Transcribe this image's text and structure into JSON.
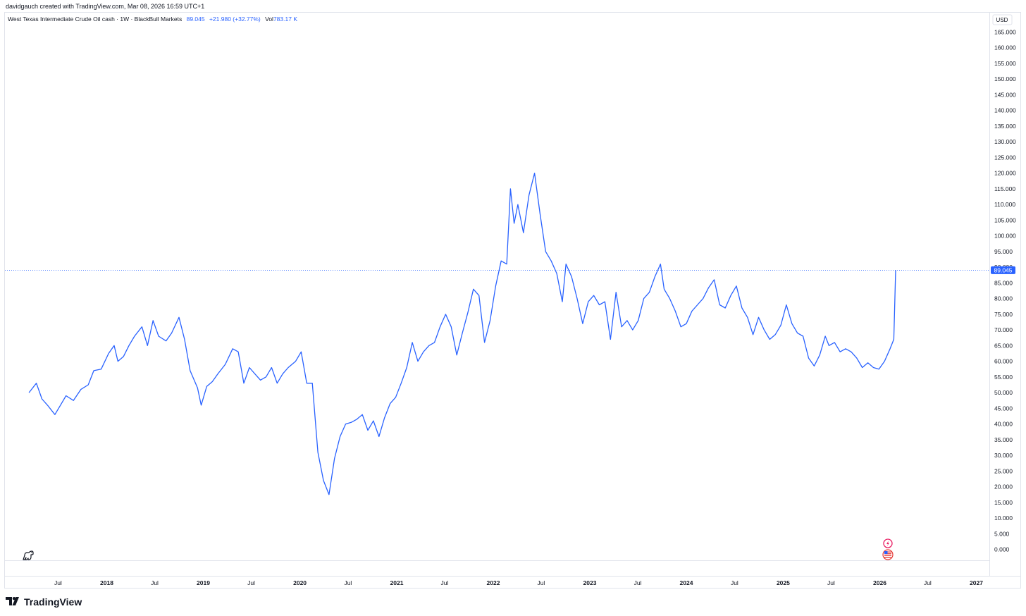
{
  "credit": "davidgauch created with TradingView.com, Mar 08, 2026 16:59 UTC+1",
  "legend": {
    "symbol": "West Texas Intermediate Crude Oil cash · 1W · BlackBull Markets",
    "price": "89.045",
    "change": "+21.980 (+32.77%)",
    "vol_label": "Vol",
    "vol_value": "783.17 K"
  },
  "currency": "USD",
  "last_price_label": "89.045",
  "brand": "TradingView",
  "colors": {
    "line": "#2962ff",
    "axis_text": "#131722",
    "border": "#e0e3eb",
    "price_badge": "#2962ff"
  },
  "icons": [
    "dino-icon",
    "events-flash-icon",
    "us-flag-icon",
    "tradingview-logo-icon"
  ],
  "chart_data": {
    "type": "line",
    "ylim": [
      0,
      165
    ],
    "y_ticks": [
      "165.000",
      "160.000",
      "155.000",
      "150.000",
      "145.000",
      "140.000",
      "135.000",
      "130.000",
      "125.000",
      "120.000",
      "115.000",
      "110.000",
      "105.000",
      "100.000",
      "95.000",
      "90.000",
      "85.000",
      "80.000",
      "75.000",
      "70.000",
      "65.000",
      "60.000",
      "55.000",
      "50.000",
      "45.000",
      "40.000",
      "35.000",
      "30.000",
      "25.000",
      "20.000",
      "15.000",
      "10.000",
      "5.000",
      "0.000"
    ],
    "x_ticks": [
      {
        "label": "Jul",
        "date": "2017-07-01",
        "bold": false
      },
      {
        "label": "2018",
        "date": "2018-01-01",
        "bold": true
      },
      {
        "label": "Jul",
        "date": "2018-07-01",
        "bold": false
      },
      {
        "label": "2019",
        "date": "2019-01-01",
        "bold": true
      },
      {
        "label": "Jul",
        "date": "2019-07-01",
        "bold": false
      },
      {
        "label": "2020",
        "date": "2020-01-01",
        "bold": true
      },
      {
        "label": "Jul",
        "date": "2020-07-01",
        "bold": false
      },
      {
        "label": "2021",
        "date": "2021-01-01",
        "bold": true
      },
      {
        "label": "Jul",
        "date": "2021-07-01",
        "bold": false
      },
      {
        "label": "2022",
        "date": "2022-01-01",
        "bold": true
      },
      {
        "label": "Jul",
        "date": "2022-07-01",
        "bold": false
      },
      {
        "label": "2023",
        "date": "2023-01-01",
        "bold": true
      },
      {
        "label": "Jul",
        "date": "2023-07-01",
        "bold": false
      },
      {
        "label": "2024",
        "date": "2024-01-01",
        "bold": true
      },
      {
        "label": "Jul",
        "date": "2024-07-01",
        "bold": false
      },
      {
        "label": "2025",
        "date": "2025-01-01",
        "bold": true
      },
      {
        "label": "Jul",
        "date": "2025-07-01",
        "bold": false
      },
      {
        "label": "2026",
        "date": "2026-01-01",
        "bold": true
      },
      {
        "label": "Jul",
        "date": "2026-07-01",
        "bold": false
      },
      {
        "label": "2027",
        "date": "2027-01-01",
        "bold": true
      }
    ],
    "last_value": 89.045,
    "series": [
      {
        "points": [
          [
            "2017-03-13",
            50.0
          ],
          [
            "2017-04-10",
            53.0
          ],
          [
            "2017-05-01",
            48.0
          ],
          [
            "2017-05-22",
            46.0
          ],
          [
            "2017-06-19",
            43.0
          ],
          [
            "2017-07-10",
            46.0
          ],
          [
            "2017-07-31",
            49.0
          ],
          [
            "2017-08-28",
            47.5
          ],
          [
            "2017-09-25",
            51.0
          ],
          [
            "2017-10-23",
            52.5
          ],
          [
            "2017-11-13",
            57.0
          ],
          [
            "2017-12-11",
            57.5
          ],
          [
            "2018-01-08",
            62.5
          ],
          [
            "2018-01-29",
            65.0
          ],
          [
            "2018-02-12",
            60.0
          ],
          [
            "2018-03-05",
            61.5
          ],
          [
            "2018-03-26",
            65.0
          ],
          [
            "2018-04-16",
            68.0
          ],
          [
            "2018-05-14",
            71.0
          ],
          [
            "2018-06-04",
            65.0
          ],
          [
            "2018-06-25",
            73.0
          ],
          [
            "2018-07-16",
            68.0
          ],
          [
            "2018-08-13",
            66.5
          ],
          [
            "2018-09-03",
            69.0
          ],
          [
            "2018-10-01",
            74.0
          ],
          [
            "2018-10-22",
            67.0
          ],
          [
            "2018-11-12",
            57.0
          ],
          [
            "2018-12-10",
            51.5
          ],
          [
            "2018-12-24",
            46.0
          ],
          [
            "2019-01-14",
            52.0
          ],
          [
            "2019-02-04",
            53.5
          ],
          [
            "2019-02-25",
            56.0
          ],
          [
            "2019-03-25",
            59.0
          ],
          [
            "2019-04-22",
            64.0
          ],
          [
            "2019-05-13",
            63.0
          ],
          [
            "2019-06-03",
            53.0
          ],
          [
            "2019-06-24",
            58.0
          ],
          [
            "2019-07-15",
            56.0
          ],
          [
            "2019-08-05",
            54.0
          ],
          [
            "2019-08-26",
            55.0
          ],
          [
            "2019-09-16",
            58.0
          ],
          [
            "2019-10-07",
            53.0
          ],
          [
            "2019-10-28",
            56.0
          ],
          [
            "2019-11-18",
            58.0
          ],
          [
            "2019-12-16",
            60.0
          ],
          [
            "2020-01-06",
            63.0
          ],
          [
            "2020-01-27",
            53.0
          ],
          [
            "2020-02-17",
            53.0
          ],
          [
            "2020-03-09",
            31.0
          ],
          [
            "2020-03-30",
            22.0
          ],
          [
            "2020-04-20",
            17.5
          ],
          [
            "2020-05-11",
            29.0
          ],
          [
            "2020-06-01",
            36.0
          ],
          [
            "2020-06-22",
            40.0
          ],
          [
            "2020-07-13",
            40.5
          ],
          [
            "2020-08-03",
            41.5
          ],
          [
            "2020-08-24",
            43.0
          ],
          [
            "2020-09-14",
            38.0
          ],
          [
            "2020-10-05",
            41.0
          ],
          [
            "2020-10-26",
            36.0
          ],
          [
            "2020-11-16",
            42.0
          ],
          [
            "2020-12-07",
            46.5
          ],
          [
            "2020-12-28",
            48.5
          ],
          [
            "2021-01-18",
            53.0
          ],
          [
            "2021-02-08",
            58.0
          ],
          [
            "2021-03-01",
            66.0
          ],
          [
            "2021-03-22",
            60.0
          ],
          [
            "2021-04-12",
            63.0
          ],
          [
            "2021-05-03",
            65.0
          ],
          [
            "2021-05-24",
            66.0
          ],
          [
            "2021-06-14",
            71.0
          ],
          [
            "2021-07-05",
            75.0
          ],
          [
            "2021-07-26",
            71.0
          ],
          [
            "2021-08-16",
            62.0
          ],
          [
            "2021-09-06",
            69.0
          ],
          [
            "2021-09-27",
            75.5
          ],
          [
            "2021-10-18",
            83.0
          ],
          [
            "2021-11-08",
            81.0
          ],
          [
            "2021-11-29",
            66.0
          ],
          [
            "2021-12-20",
            73.0
          ],
          [
            "2022-01-10",
            84.0
          ],
          [
            "2022-01-31",
            92.0
          ],
          [
            "2022-02-21",
            91.0
          ],
          [
            "2022-03-07",
            115.0
          ],
          [
            "2022-03-21",
            104.0
          ],
          [
            "2022-04-04",
            110.0
          ],
          [
            "2022-04-25",
            101.0
          ],
          [
            "2022-05-16",
            113.0
          ],
          [
            "2022-06-06",
            120.0
          ],
          [
            "2022-06-27",
            107.0
          ],
          [
            "2022-07-18",
            95.0
          ],
          [
            "2022-08-08",
            92.0
          ],
          [
            "2022-08-29",
            88.0
          ],
          [
            "2022-09-19",
            79.0
          ],
          [
            "2022-10-03",
            91.0
          ],
          [
            "2022-10-24",
            87.0
          ],
          [
            "2022-11-14",
            80.0
          ],
          [
            "2022-12-05",
            72.0
          ],
          [
            "2022-12-26",
            79.0
          ],
          [
            "2023-01-16",
            81.0
          ],
          [
            "2023-02-06",
            78.0
          ],
          [
            "2023-02-27",
            79.0
          ],
          [
            "2023-03-20",
            67.0
          ],
          [
            "2023-04-10",
            82.0
          ],
          [
            "2023-05-01",
            71.0
          ],
          [
            "2023-05-22",
            73.0
          ],
          [
            "2023-06-12",
            70.0
          ],
          [
            "2023-07-03",
            73.0
          ],
          [
            "2023-07-24",
            80.0
          ],
          [
            "2023-08-14",
            82.0
          ],
          [
            "2023-09-04",
            87.0
          ],
          [
            "2023-09-25",
            91.0
          ],
          [
            "2023-10-09",
            83.0
          ],
          [
            "2023-10-30",
            80.0
          ],
          [
            "2023-11-20",
            76.0
          ],
          [
            "2023-12-11",
            71.0
          ],
          [
            "2024-01-01",
            72.0
          ],
          [
            "2024-01-22",
            76.0
          ],
          [
            "2024-02-12",
            78.0
          ],
          [
            "2024-03-04",
            80.0
          ],
          [
            "2024-03-25",
            83.5
          ],
          [
            "2024-04-15",
            86.0
          ],
          [
            "2024-05-06",
            78.0
          ],
          [
            "2024-05-27",
            77.0
          ],
          [
            "2024-06-17",
            81.0
          ],
          [
            "2024-07-08",
            84.0
          ],
          [
            "2024-07-29",
            77.0
          ],
          [
            "2024-08-19",
            74.0
          ],
          [
            "2024-09-09",
            68.5
          ],
          [
            "2024-09-30",
            74.0
          ],
          [
            "2024-10-21",
            70.0
          ],
          [
            "2024-11-11",
            67.0
          ],
          [
            "2024-12-02",
            68.5
          ],
          [
            "2024-12-23",
            71.5
          ],
          [
            "2025-01-13",
            78.0
          ],
          [
            "2025-02-03",
            72.0
          ],
          [
            "2025-02-24",
            69.0
          ],
          [
            "2025-03-17",
            68.0
          ],
          [
            "2025-04-07",
            61.0
          ],
          [
            "2025-04-28",
            58.5
          ],
          [
            "2025-05-19",
            62.0
          ],
          [
            "2025-06-09",
            68.0
          ],
          [
            "2025-06-23",
            65.0
          ],
          [
            "2025-07-14",
            66.0
          ],
          [
            "2025-08-04",
            63.0
          ],
          [
            "2025-08-25",
            64.0
          ],
          [
            "2025-09-15",
            63.0
          ],
          [
            "2025-10-06",
            61.0
          ],
          [
            "2025-10-27",
            58.0
          ],
          [
            "2025-11-17",
            59.5
          ],
          [
            "2025-12-08",
            58.0
          ],
          [
            "2025-12-29",
            57.5
          ],
          [
            "2026-01-19",
            60.0
          ],
          [
            "2026-02-09",
            64.0
          ],
          [
            "2026-02-23",
            67.0
          ],
          [
            "2026-03-02",
            89.045
          ]
        ]
      }
    ]
  }
}
